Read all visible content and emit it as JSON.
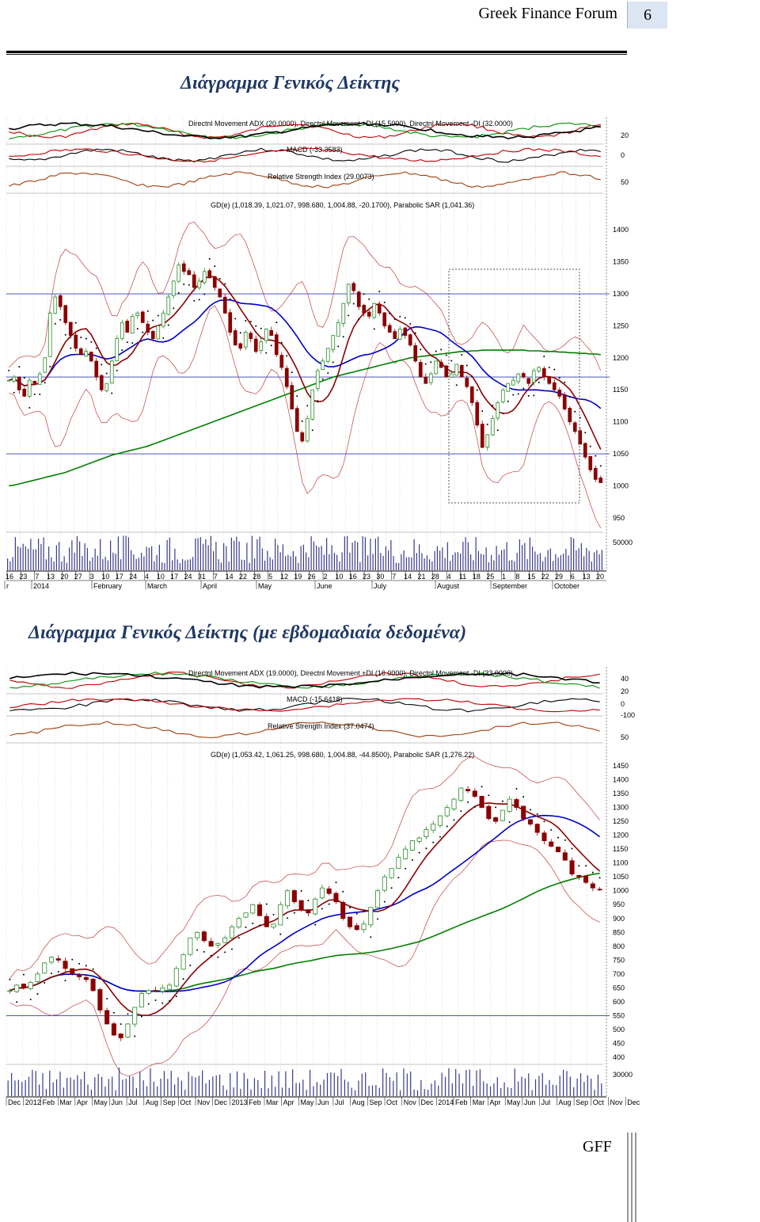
{
  "header": {
    "title": "Greek Finance Forum",
    "page": "6"
  },
  "sections": [
    {
      "title": "Διάγραμμα Γενικός Δείκτης"
    },
    {
      "title": "Διάγραμμα Γενικός Δείκτης (με εβδομαδιαία δεδομένα)"
    }
  ],
  "footer": {
    "text": "GFF"
  },
  "chart_data": [
    {
      "type": "candlestick",
      "indicators": {
        "dmi": "Directnl Movement ADX (20.0000), Directnl Movement +DI (15.5000), Directnl Movement -DI (32.0000)",
        "macd": "MACD (-33.3583)",
        "rsi": "Relative Strength Index (29.0073)",
        "price": "GD(e) (1,018.39, 1,021.07, 998.680, 1,004.88, -20.1700), Parabolic SAR (1,041.36)"
      },
      "indicator_ticks": [
        "20",
        "0",
        "50"
      ],
      "y_ticks": [
        1400,
        1350,
        1300,
        1250,
        1200,
        1150,
        1100,
        1050,
        1000,
        950
      ],
      "ylim": [
        930,
        1430
      ],
      "volume_tick": "50000",
      "x_day_labels": [
        "16",
        "23",
        "7",
        "13",
        "20",
        "27",
        "3",
        "10",
        "17",
        "24",
        "4",
        "10",
        "17",
        "24",
        "31",
        "7",
        "14",
        "22",
        "28",
        "5",
        "12",
        "19",
        "26",
        "2",
        "10",
        "16",
        "23",
        "30",
        "7",
        "14",
        "21",
        "28",
        "4",
        "11",
        "18",
        "25",
        "1",
        "8",
        "15",
        "22",
        "29",
        "6",
        "13",
        "20"
      ],
      "x_month_labels": [
        "r",
        "2014",
        "February",
        "March",
        "April",
        "May",
        "June",
        "July",
        "August",
        "September",
        "October"
      ],
      "horizontal_lines": [
        1300,
        1170,
        1050
      ],
      "close": [
        1165,
        1170,
        1150,
        1140,
        1165,
        1160,
        1175,
        1200,
        1270,
        1295,
        1280,
        1255,
        1235,
        1215,
        1205,
        1210,
        1195,
        1170,
        1150,
        1160,
        1195,
        1230,
        1255,
        1240,
        1265,
        1270,
        1255,
        1240,
        1230,
        1250,
        1270,
        1295,
        1320,
        1345,
        1335,
        1330,
        1310,
        1320,
        1335,
        1325,
        1310,
        1295,
        1270,
        1240,
        1220,
        1215,
        1240,
        1230,
        1210,
        1225,
        1245,
        1235,
        1205,
        1185,
        1155,
        1120,
        1085,
        1070,
        1105,
        1150,
        1180,
        1195,
        1215,
        1235,
        1255,
        1285,
        1315,
        1305,
        1280,
        1270,
        1265,
        1285,
        1270,
        1250,
        1240,
        1230,
        1245,
        1235,
        1220,
        1195,
        1170,
        1160,
        1175,
        1195,
        1185,
        1170,
        1175,
        1190,
        1170,
        1155,
        1130,
        1095,
        1060,
        1080,
        1105,
        1130,
        1150,
        1160,
        1165,
        1175,
        1170,
        1160,
        1180,
        1185,
        1170,
        1160,
        1150,
        1140,
        1120,
        1100,
        1085,
        1065,
        1045,
        1025,
        1010,
        1004.88
      ],
      "ma200": [
        1000,
        1001,
        1003,
        1005,
        1007,
        1009,
        1011,
        1013,
        1015,
        1017,
        1019,
        1021,
        1024,
        1027,
        1030,
        1033,
        1036,
        1039,
        1042,
        1045,
        1048,
        1050,
        1052,
        1054,
        1056,
        1058,
        1060,
        1062,
        1065,
        1068,
        1071,
        1074,
        1077,
        1080,
        1083,
        1086,
        1089,
        1092,
        1095,
        1098,
        1101,
        1104,
        1107,
        1110,
        1113,
        1116,
        1119,
        1122,
        1125,
        1128,
        1131,
        1134,
        1137,
        1140,
        1143,
        1146,
        1149,
        1152,
        1155,
        1158,
        1161,
        1164,
        1167,
        1170,
        1172,
        1174,
        1176,
        1178,
        1180,
        1182,
        1184,
        1186,
        1188,
        1190,
        1192,
        1194,
        1196,
        1198,
        1200,
        1201,
        1202,
        1203,
        1204,
        1205,
        1206,
        1207,
        1208,
        1209,
        1210,
        1210,
        1211,
        1211,
        1212,
        1212,
        1212,
        1212,
        1212,
        1212,
        1212,
        1212,
        1212,
        1211,
        1211,
        1211,
        1210,
        1210,
        1210,
        1209,
        1209,
        1208,
        1208,
        1207,
        1207,
        1206,
        1206,
        1205
      ],
      "series": [
        {
          "name": "",
          "role": "ma-short",
          "color": "#8b0000"
        },
        {
          "name": "",
          "role": "ma-mid",
          "color": "#0000c8"
        },
        {
          "name": "",
          "role": "ma-long",
          "color": "#008000"
        }
      ]
    },
    {
      "type": "candlestick",
      "indicators": {
        "dmi": "Directnl Movement ADX (19.0000), Directnl Movement +DI (16.0000), Directnl Movement -DI (33.0000)",
        "macd": "MACD (-15.6418)",
        "rsi": "Relative Strength Index (37.0474)",
        "price": "GD(e) (1,053.42, 1,061.25, 998.680, 1,004.88, -44.8500), Parabolic SAR (1,276.22)"
      },
      "indicator_ticks": [
        "40",
        "20",
        "0",
        "-100",
        "50"
      ],
      "y_ticks": [
        1450,
        1400,
        1350,
        1300,
        1250,
        1200,
        1150,
        1100,
        1050,
        1000,
        950,
        900,
        850,
        800,
        750,
        700,
        650,
        600,
        550,
        500,
        450,
        400
      ],
      "ylim": [
        380,
        1470
      ],
      "volume_tick": "30000",
      "x_labels": [
        "Dec",
        "2012",
        "Feb",
        "Mar",
        "Apr",
        "May",
        "Jun",
        "Jul",
        "Aug",
        "Sep",
        "Oct",
        "Nov",
        "Dec",
        "2013",
        "Feb",
        "Mar",
        "Apr",
        "May",
        "Jun",
        "Jul",
        "Aug",
        "Sep",
        "Oct",
        "Nov",
        "Dec",
        "2014",
        "Feb",
        "Mar",
        "Apr",
        "May",
        "Jun",
        "Jul",
        "Aug",
        "Sep",
        "Oct",
        "Nov",
        "Dec"
      ],
      "horizontal_lines": [
        550
      ],
      "close": [
        640,
        660,
        650,
        670,
        700,
        740,
        760,
        750,
        720,
        700,
        690,
        680,
        640,
        570,
        520,
        480,
        470,
        520,
        580,
        630,
        640,
        640,
        650,
        660,
        720,
        770,
        830,
        850,
        820,
        800,
        810,
        830,
        870,
        900,
        920,
        950,
        910,
        870,
        880,
        950,
        1000,
        960,
        930,
        920,
        970,
        1010,
        990,
        960,
        900,
        870,
        860,
        880,
        940,
        1000,
        1050,
        1080,
        1120,
        1150,
        1180,
        1190,
        1220,
        1240,
        1270,
        1300,
        1330,
        1370,
        1360,
        1340,
        1300,
        1260,
        1250,
        1290,
        1330,
        1300,
        1260,
        1240,
        1210,
        1180,
        1160,
        1140,
        1110,
        1060,
        1050,
        1030,
        1010,
        1004.88
      ],
      "series": [
        {
          "name": "",
          "role": "ma-short",
          "color": "#8b0000"
        },
        {
          "name": "",
          "role": "ma-mid",
          "color": "#0000c8"
        },
        {
          "name": "",
          "role": "ma-long",
          "color": "#008000"
        }
      ]
    }
  ]
}
